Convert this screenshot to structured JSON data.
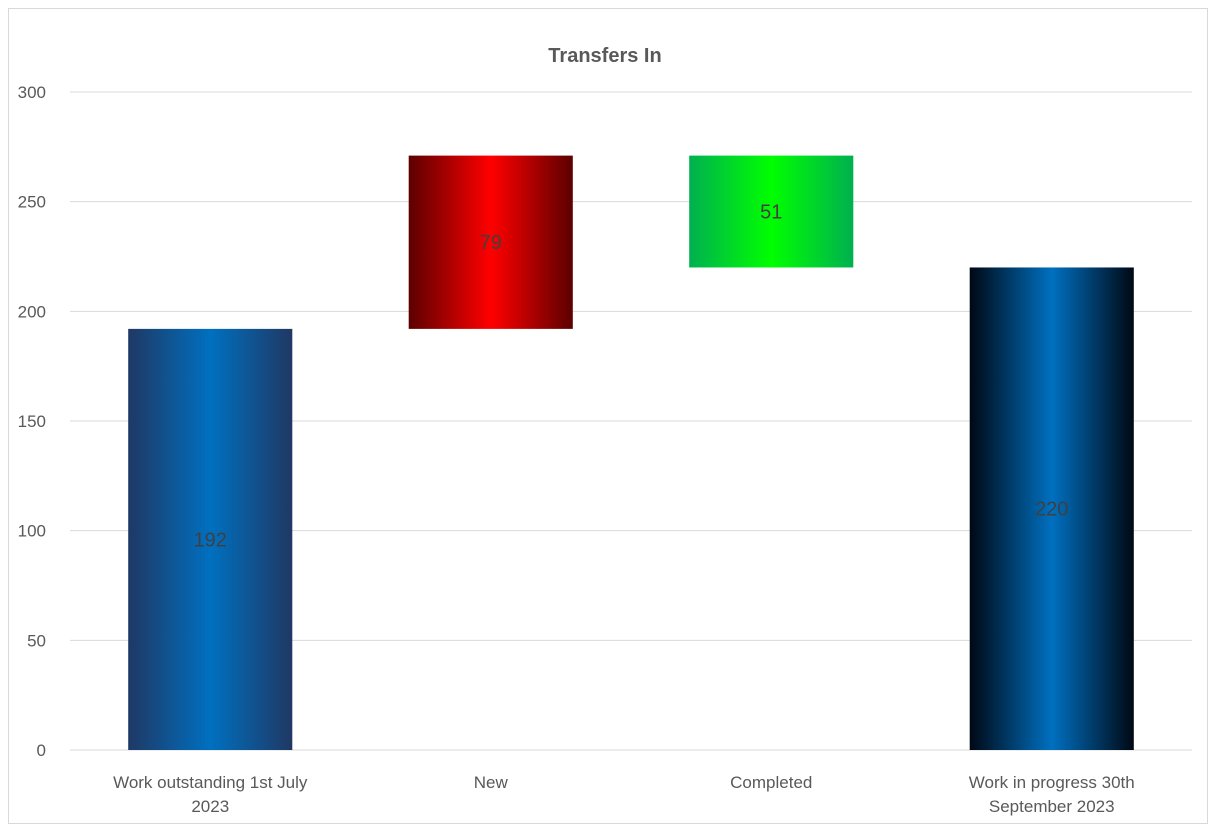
{
  "chart_data": {
    "type": "bar",
    "subtype": "waterfall",
    "title": "Transfers In",
    "xlabel": "",
    "ylabel": "",
    "ylim": [
      0,
      300
    ],
    "yticks": [
      0,
      50,
      100,
      150,
      200,
      250,
      300
    ],
    "grid": true,
    "legend": "none",
    "categories": [
      [
        "Work outstanding 1st July",
        "2023"
      ],
      [
        "New"
      ],
      [
        "Completed"
      ],
      [
        "Work in progress 30th",
        "September 2023"
      ]
    ],
    "bars": [
      {
        "kind": "total",
        "base": 0,
        "value": 192,
        "label": "192",
        "color_edge": "#1f3864",
        "color_center": "#0070c0"
      },
      {
        "kind": "increase",
        "base": 192,
        "value": 79,
        "label": "79",
        "color_edge": "#5c0000",
        "color_center": "#ff0000"
      },
      {
        "kind": "decrease",
        "base": 220,
        "value": 51,
        "label": "51",
        "color_edge": "#00b050",
        "color_center": "#00ff00"
      },
      {
        "kind": "total",
        "base": 0,
        "value": 220,
        "label": "220",
        "color_edge": "#000814",
        "color_center": "#0070c0"
      }
    ],
    "colors": {
      "gridline": "#d9d9d9",
      "axis_text": "#595959",
      "data_label": "#404040"
    }
  }
}
